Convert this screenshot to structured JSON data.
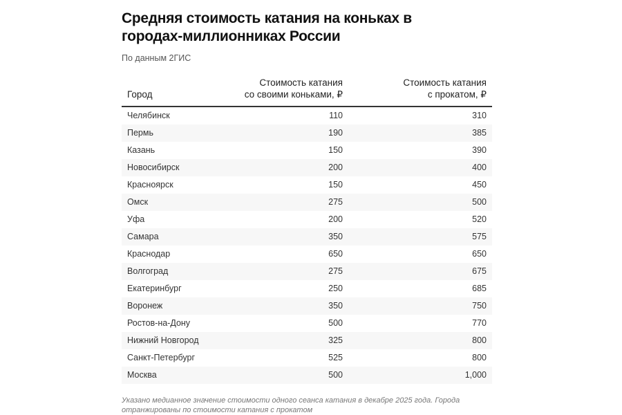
{
  "header": {
    "title": "Средняя стоимость катания на коньках в городах-миллионниках России",
    "subtitle": "По данным 2ГИС"
  },
  "table": {
    "columns": [
      {
        "line1": "",
        "line2": "Город"
      },
      {
        "line1": "Стоимость катания",
        "line2": "со своими коньками, ₽"
      },
      {
        "line1": "Стоимость катания",
        "line2": "с прокатом, ₽"
      }
    ],
    "rows": [
      {
        "city": "Челябинск",
        "own": "110",
        "rental": "310"
      },
      {
        "city": "Пермь",
        "own": "190",
        "rental": "385"
      },
      {
        "city": "Казань",
        "own": "150",
        "rental": "390"
      },
      {
        "city": "Новосибирск",
        "own": "200",
        "rental": "400"
      },
      {
        "city": "Красноярск",
        "own": "150",
        "rental": "450"
      },
      {
        "city": "Омск",
        "own": "275",
        "rental": "500"
      },
      {
        "city": "Уфа",
        "own": "200",
        "rental": "520"
      },
      {
        "city": "Самара",
        "own": "350",
        "rental": "575"
      },
      {
        "city": "Краснодар",
        "own": "650",
        "rental": "650"
      },
      {
        "city": "Волгоград",
        "own": "275",
        "rental": "675"
      },
      {
        "city": "Екатеринбург",
        "own": "250",
        "rental": "685"
      },
      {
        "city": "Воронеж",
        "own": "350",
        "rental": "750"
      },
      {
        "city": "Ростов-на-Дону",
        "own": "500",
        "rental": "770"
      },
      {
        "city": "Нижний Новгород",
        "own": "325",
        "rental": "800"
      },
      {
        "city": "Санкт-Петербург",
        "own": "525",
        "rental": "800"
      },
      {
        "city": "Москва",
        "own": "500",
        "rental": "1,000"
      }
    ]
  },
  "footnote": "Указано медианное значение стоимости одного сеанса катания в декабре 2025 года. Города отранжированы по стоимости катания с прокатом",
  "colors": {
    "row_alt": "#f7f7f7",
    "header_rule": "#333333",
    "text": "#1a1a1a",
    "muted": "#777777"
  },
  "chart_data": {
    "type": "table",
    "title": "Средняя стоимость катания на коньках в городах-миллионниках России",
    "subtitle": "По данным 2ГИС",
    "columns": [
      "Город",
      "Стоимость катания со своими коньками, ₽",
      "Стоимость катания с прокатом, ₽"
    ],
    "categories": [
      "Челябинск",
      "Пермь",
      "Казань",
      "Новосибирск",
      "Красноярск",
      "Омск",
      "Уфа",
      "Самара",
      "Краснодар",
      "Волгоград",
      "Екатеринбург",
      "Воронеж",
      "Ростов-на-Дону",
      "Нижний Новгород",
      "Санкт-Петербург",
      "Москва"
    ],
    "series": [
      {
        "name": "Стоимость катания со своими коньками, ₽",
        "values": [
          110,
          190,
          150,
          200,
          150,
          275,
          200,
          350,
          650,
          275,
          250,
          350,
          500,
          325,
          525,
          500
        ]
      },
      {
        "name": "Стоимость катания с прокатом, ₽",
        "values": [
          310,
          385,
          390,
          400,
          450,
          500,
          520,
          575,
          650,
          675,
          685,
          750,
          770,
          800,
          800,
          1000
        ]
      }
    ],
    "note": "Указано медианное значение стоимости одного сеанса катания в декабре 2025 года. Города отранжированы по стоимости катания с прокатом"
  }
}
